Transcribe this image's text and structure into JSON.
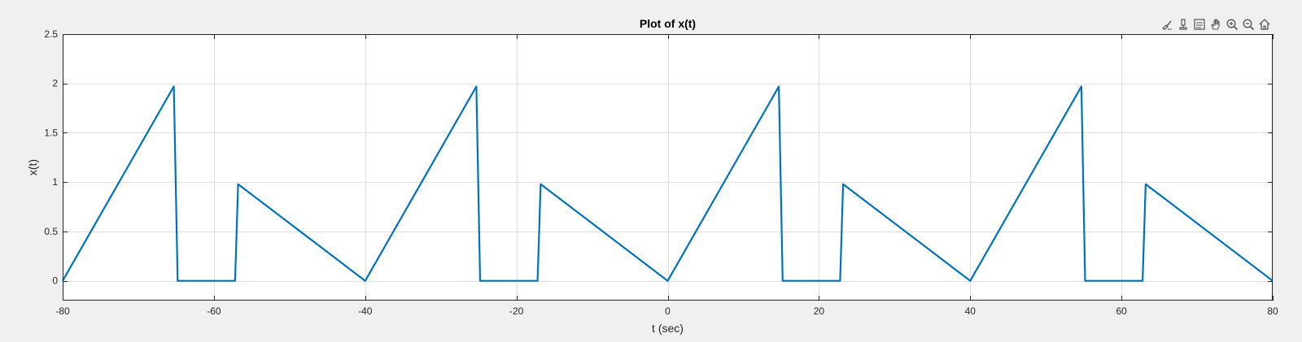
{
  "toolbar": {
    "icons": [
      "brush-icon",
      "data-tips-icon",
      "legend-icon",
      "pan-icon",
      "zoom-in-icon",
      "zoom-out-icon",
      "home-icon"
    ]
  },
  "chart_data": {
    "type": "line",
    "title": "Plot of x(t)",
    "xlabel": "t (sec)",
    "ylabel": "x(t)",
    "xlim": [
      -80,
      80
    ],
    "ylim": [
      -0.2,
      2.5
    ],
    "xticks": [
      -80,
      -60,
      -40,
      -20,
      0,
      20,
      40,
      60,
      80
    ],
    "yticks": [
      0,
      0.5,
      1,
      1.5,
      2,
      2.5
    ],
    "xtick_labels": [
      "-80",
      "-60",
      "-40",
      "-20",
      "0",
      "20",
      "40",
      "60",
      "80"
    ],
    "ytick_labels": [
      "0",
      "0.5",
      "1",
      "1.5",
      "2",
      "2.5"
    ],
    "grid": true,
    "series": [
      {
        "color": "#0072bd",
        "x": [
          -80,
          -65.3,
          -64.8,
          -57.2,
          -56.8,
          -40,
          -25.3,
          -24.8,
          -17.2,
          -16.8,
          0,
          14.7,
          15.2,
          22.8,
          23.2,
          40,
          54.7,
          55.2,
          62.8,
          63.2,
          80
        ],
        "y": [
          0,
          1.97,
          0,
          0,
          0.98,
          0,
          1.97,
          0,
          0,
          0.98,
          0,
          1.97,
          0,
          0,
          0.98,
          0,
          1.97,
          0,
          0,
          0.98,
          0
        ]
      }
    ]
  }
}
